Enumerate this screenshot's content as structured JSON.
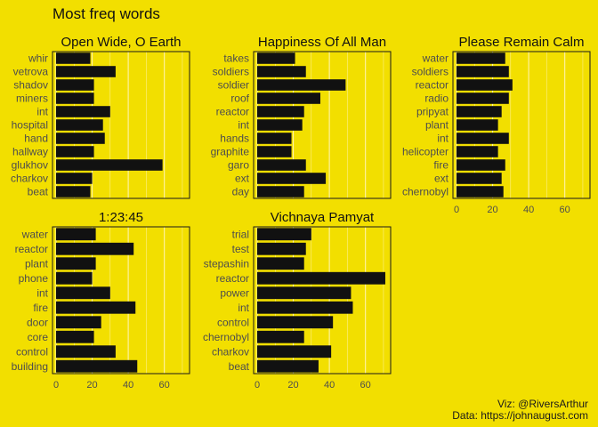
{
  "title": "Most freq words",
  "caption": {
    "line1": "Viz: @RiversArthur",
    "line2": "Data: https://johnaugust.com"
  },
  "colors": {
    "background": "#f2df00",
    "bar": "#111111",
    "grid": "#fff3a8",
    "text": "#4d4d4d"
  },
  "chart_data": {
    "type": "bar",
    "orientation": "horizontal",
    "faceted": true,
    "title": "Most freq words",
    "xlim": [
      0,
      72
    ],
    "x_ticks": [
      0,
      20,
      40,
      60
    ],
    "grid": true,
    "panels": [
      {
        "title": "Open Wide, O Earth",
        "categories": [
          "whir",
          "vetrova",
          "shadov",
          "miners",
          "int",
          "hospital",
          "hand",
          "hallway",
          "glukhov",
          "charkov",
          "beat"
        ],
        "values": [
          19,
          33,
          21,
          21,
          30,
          26,
          27,
          21,
          59,
          20,
          19
        ]
      },
      {
        "title": "Happiness Of All Man",
        "categories": [
          "takes",
          "soldiers",
          "soldier",
          "roof",
          "reactor",
          "int",
          "hands",
          "graphite",
          "garo",
          "ext",
          "day"
        ],
        "values": [
          21,
          27,
          49,
          35,
          26,
          25,
          19,
          19,
          27,
          38,
          26
        ]
      },
      {
        "title": "Please Remain Calm",
        "categories": [
          "water",
          "soldiers",
          "reactor",
          "radio",
          "pripyat",
          "plant",
          "int",
          "helicopter",
          "fire",
          "ext",
          "chernobyl"
        ],
        "values": [
          27,
          29,
          31,
          29,
          25,
          23,
          29,
          23,
          27,
          25,
          26
        ]
      },
      {
        "title": "1:23:45",
        "categories": [
          "water",
          "reactor",
          "plant",
          "phone",
          "int",
          "fire",
          "door",
          "core",
          "control",
          "building"
        ],
        "values": [
          22,
          43,
          22,
          20,
          30,
          44,
          25,
          21,
          33,
          45
        ]
      },
      {
        "title": "Vichnaya Pamyat",
        "categories": [
          "trial",
          "test",
          "stepashin",
          "reactor",
          "power",
          "int",
          "control",
          "chernobyl",
          "charkov",
          "beat"
        ],
        "values": [
          30,
          27,
          26,
          71,
          52,
          53,
          42,
          26,
          41,
          34
        ]
      }
    ]
  }
}
